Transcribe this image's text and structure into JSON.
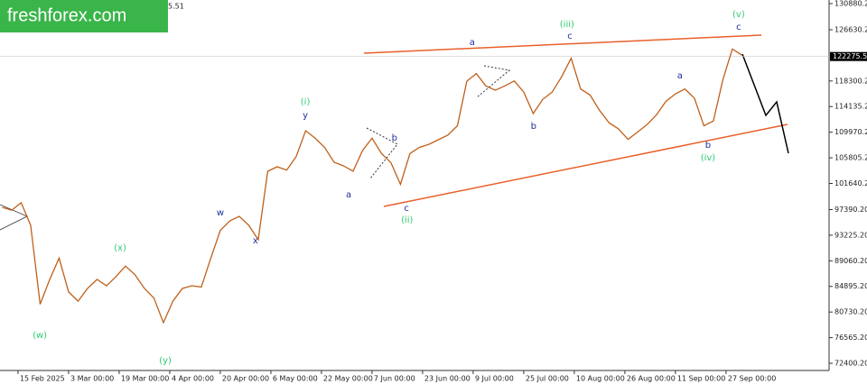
{
  "logo": "freshforex.com",
  "header_fragment": "5.51",
  "chart_data": {
    "type": "line",
    "color": "#c0601a",
    "x": [
      -5,
      -2,
      1,
      4,
      7,
      10,
      13,
      16,
      19,
      22,
      25,
      28,
      31,
      34,
      37,
      40,
      43,
      46,
      49,
      52,
      55,
      58,
      61,
      64,
      67,
      70,
      73,
      76,
      79,
      82,
      85,
      88,
      91,
      94,
      97,
      100,
      103,
      106,
      109,
      112,
      115,
      118,
      121,
      124,
      127,
      130,
      133,
      136,
      139,
      142,
      145,
      148,
      151,
      154,
      157,
      160,
      163,
      166,
      169,
      172,
      175,
      178,
      181,
      184,
      187,
      190,
      193,
      196,
      199,
      202,
      205,
      208,
      211,
      214,
      217,
      220,
      223,
      226,
      229
    ],
    "values": [
      97760,
      97300,
      98500,
      94830,
      82000,
      86000,
      89500,
      84000,
      82500,
      84570,
      86030,
      85000,
      86500,
      88200,
      86800,
      84570,
      83000,
      79000,
      82500,
      84570,
      85000,
      84800,
      89500,
      94000,
      95560,
      96290,
      94830,
      92500,
      103620,
      104350,
      103800,
      106000,
      110210,
      109000,
      107500,
      105080,
      104500,
      103620,
      107000,
      109000,
      106500,
      105000,
      101500,
      106500,
      107500,
      108000,
      108750,
      109500,
      111000,
      118270,
      119500,
      117500,
      116800,
      117500,
      118300,
      116500,
      113000,
      115300,
      116500,
      119000,
      122000,
      117000,
      116000,
      113500,
      111500,
      110500,
      108800,
      110000,
      111200,
      112800,
      115000,
      116200,
      117000,
      115500,
      111000,
      111800,
      118500,
      123500,
      122500
    ],
    "xlim": [
      -5.7,
      256.6
    ],
    "ylim": [
      71374,
      131466
    ],
    "yticks": [
      {
        "value": 130880.2,
        "label": "130880.20"
      },
      {
        "value": 126630.2,
        "label": "126630.20"
      },
      {
        "value": 118300.2,
        "label": "118300.20"
      },
      {
        "value": 114135.2,
        "label": "114135.20"
      },
      {
        "value": 109970.2,
        "label": "109970.20"
      },
      {
        "value": 105805.2,
        "label": "105805.20"
      },
      {
        "value": 101640.2,
        "label": "101640.20"
      },
      {
        "value": 97390.2,
        "label": "97390.20"
      },
      {
        "value": 93225.2,
        "label": "93225.20"
      },
      {
        "value": 89060.2,
        "label": "89060.20"
      },
      {
        "value": 84895.2,
        "label": "84895.20"
      },
      {
        "value": 80730.2,
        "label": "80730.20"
      },
      {
        "value": 76565.2,
        "label": "76565.20"
      },
      {
        "value": 72400.2,
        "label": "72400.20"
      }
    ],
    "xticks": [
      {
        "value": 0,
        "label": "15 Feb 2025"
      },
      {
        "value": 16,
        "label": "3 Mar 00:00"
      },
      {
        "value": 32,
        "label": "19 Mar 00:00"
      },
      {
        "value": 48,
        "label": "4 Apr 00:00"
      },
      {
        "value": 64,
        "label": "20 Apr 00:00"
      },
      {
        "value": 80,
        "label": "6 May 00:00"
      },
      {
        "value": 96,
        "label": "22 May 00:00"
      },
      {
        "value": 112,
        "label": "7 Jun 00:00"
      },
      {
        "value": 128,
        "label": "23 Jun 00:00"
      },
      {
        "value": 144,
        "label": "9 Jul 00:00"
      },
      {
        "value": 160,
        "label": "25 Jul 00:00"
      },
      {
        "value": 176,
        "label": "10 Aug 00:00"
      },
      {
        "value": 192,
        "label": "26 Aug 00:00"
      },
      {
        "value": 208,
        "label": "11 Sep 00:00"
      },
      {
        "value": 224,
        "label": "27 Sep 00:00"
      }
    ],
    "current_price": {
      "value": 122275.51,
      "label": "122275.51"
    },
    "annotations": [
      {
        "text": "(w)",
        "x": 6.9,
        "y": 76940,
        "color": "#2ecc71"
      },
      {
        "text": "(x)",
        "x": 32.3,
        "y": 91160,
        "color": "#2ecc71"
      },
      {
        "text": "(y)",
        "x": 46.6,
        "y": 72840,
        "color": "#2ecc71"
      },
      {
        "text": "w",
        "x": 64,
        "y": 96880,
        "color": "#1f2f9a"
      },
      {
        "text": "x",
        "x": 75.1,
        "y": 92330,
        "color": "#1f2f9a"
      },
      {
        "text": "(i)",
        "x": 90.9,
        "y": 114900,
        "color": "#2ecc71"
      },
      {
        "text": "y",
        "x": 90.9,
        "y": 112700,
        "color": "#1f2f9a"
      },
      {
        "text": "a",
        "x": 104.6,
        "y": 99810,
        "color": "#1f2f9a"
      },
      {
        "text": "b",
        "x": 119.1,
        "y": 109040,
        "color": "#1f2f9a"
      },
      {
        "text": "c",
        "x": 122.9,
        "y": 97610,
        "color": "#1f2f9a"
      },
      {
        "text": "(ii)",
        "x": 123.1,
        "y": 95700,
        "color": "#2ecc71"
      },
      {
        "text": "a",
        "x": 143.7,
        "y": 124580,
        "color": "#1f2f9a"
      },
      {
        "text": "b",
        "x": 163.1,
        "y": 110950,
        "color": "#1f2f9a"
      },
      {
        "text": "(iii)",
        "x": 173.7,
        "y": 127510,
        "color": "#2ecc71"
      },
      {
        "text": "c",
        "x": 174.6,
        "y": 125600,
        "color": "#1f2f9a"
      },
      {
        "text": "a",
        "x": 209.4,
        "y": 119150,
        "color": "#1f2f9a"
      },
      {
        "text": "b",
        "x": 218.3,
        "y": 107870,
        "color": "#1f2f9a"
      },
      {
        "text": "(iv)",
        "x": 218.3,
        "y": 105820,
        "color": "#2ecc71"
      },
      {
        "text": "(v)",
        "x": 228,
        "y": 129120,
        "color": "#2ecc71"
      },
      {
        "text": "c",
        "x": 228,
        "y": 127070,
        "color": "#1f2f9a"
      }
    ]
  }
}
